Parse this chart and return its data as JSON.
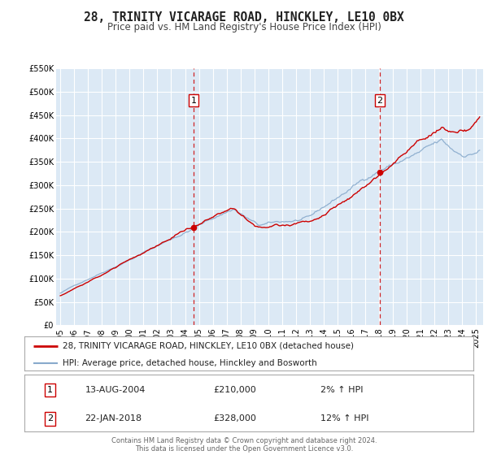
{
  "title": "28, TRINITY VICARAGE ROAD, HINCKLEY, LE10 0BX",
  "subtitle": "Price paid vs. HM Land Registry's House Price Index (HPI)",
  "ylim": [
    0,
    550000
  ],
  "yticks": [
    0,
    50000,
    100000,
    150000,
    200000,
    250000,
    300000,
    350000,
    400000,
    450000,
    500000,
    550000
  ],
  "ytick_labels": [
    "£0",
    "£50K",
    "£100K",
    "£150K",
    "£200K",
    "£250K",
    "£300K",
    "£350K",
    "£400K",
    "£450K",
    "£500K",
    "£550K"
  ],
  "xlim_start": 1994.7,
  "xlim_end": 2025.5,
  "plot_bg_color": "#dce9f5",
  "grid_color": "#ffffff",
  "outer_bg_color": "#f0f0f0",
  "red_line_color": "#cc0000",
  "blue_line_color": "#88aacc",
  "marker_color": "#cc0000",
  "vline_color": "#cc0000",
  "sale1_x": 2004.617,
  "sale1_y": 210000,
  "sale1_label": "1",
  "sale2_x": 2018.056,
  "sale2_y": 328000,
  "sale2_label": "2",
  "legend_line1": "28, TRINITY VICARAGE ROAD, HINCKLEY, LE10 0BX (detached house)",
  "legend_line2": "HPI: Average price, detached house, Hinckley and Bosworth",
  "table_row1_num": "1",
  "table_row1_date": "13-AUG-2004",
  "table_row1_price": "£210,000",
  "table_row1_hpi": "2% ↑ HPI",
  "table_row2_num": "2",
  "table_row2_date": "22-JAN-2018",
  "table_row2_price": "£328,000",
  "table_row2_hpi": "12% ↑ HPI",
  "footer1": "Contains HM Land Registry data © Crown copyright and database right 2024.",
  "footer2": "This data is licensed under the Open Government Licence v3.0.",
  "title_fontsize": 10.5,
  "subtitle_fontsize": 8.5,
  "tick_fontsize": 7,
  "legend_fontsize": 7.5,
  "table_fontsize": 8,
  "footer_fontsize": 6
}
